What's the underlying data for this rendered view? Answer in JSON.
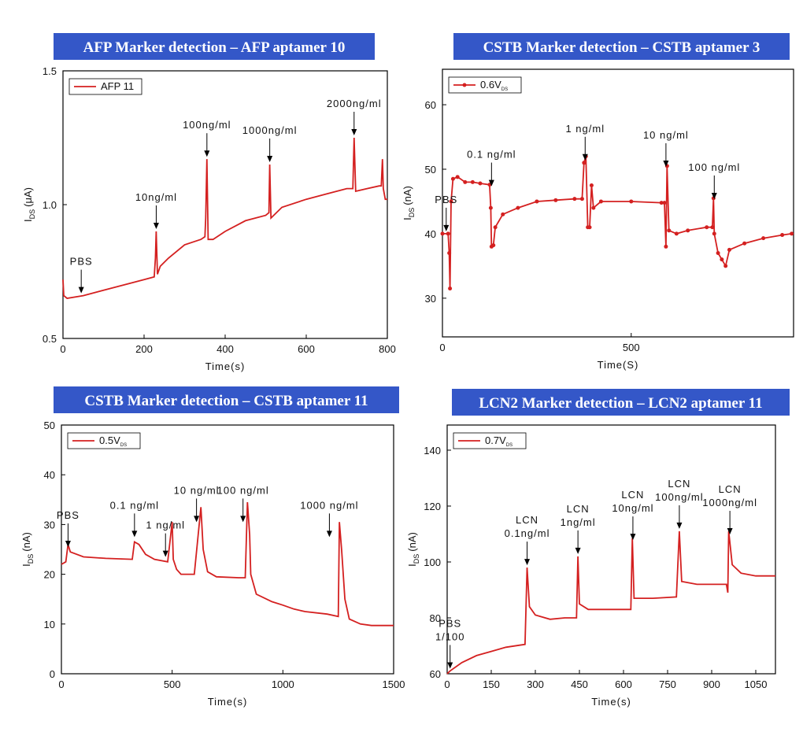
{
  "chart_data": [
    {
      "type": "line",
      "title": "AFP Marker detection – AFP aptamer 10",
      "x_label": "Time(s)",
      "y_label": {
        "main": "I",
        "sub": "DS",
        "unit": "(μA)"
      },
      "xlim": [
        0,
        800
      ],
      "xticks": [
        0,
        200,
        400,
        600,
        800
      ],
      "ylim": [
        0.5,
        1.5
      ],
      "yticks": [
        0.5,
        {
          "value": 1,
          "label": "1.0"
        },
        1.5
      ],
      "markers": false,
      "series": [
        {
          "name": "AFP 11",
          "color": "#d42020",
          "x": [
            0,
            2,
            10,
            50,
            100,
            150,
            200,
            225,
            228,
            230,
            233,
            240,
            260,
            300,
            340,
            350,
            352,
            355,
            358,
            370,
            400,
            450,
            500,
            508,
            510,
            513,
            540,
            600,
            650,
            700,
            715,
            718,
            722,
            750,
            780,
            785,
            788,
            790,
            795,
            800
          ],
          "values": [
            0.72,
            0.66,
            0.65,
            0.66,
            0.68,
            0.7,
            0.72,
            0.73,
            0.8,
            0.9,
            0.74,
            0.77,
            0.8,
            0.85,
            0.87,
            0.88,
            0.95,
            1.17,
            0.87,
            0.87,
            0.9,
            0.94,
            0.96,
            0.97,
            1.15,
            0.95,
            0.99,
            1.02,
            1.04,
            1.06,
            1.06,
            1.25,
            1.05,
            1.06,
            1.07,
            1.07,
            1.17,
            1.06,
            1.02,
            1.02
          ]
        }
      ],
      "annotations": [
        {
          "text": [
            "PBS"
          ],
          "x": 45,
          "y": 0.66
        },
        {
          "text": [
            "10ng/ml"
          ],
          "x": 230,
          "y": 0.9
        },
        {
          "text": [
            "100ng/ml"
          ],
          "x": 355,
          "y": 1.17
        },
        {
          "text": [
            "1000ng/ml"
          ],
          "x": 510,
          "y": 1.15
        },
        {
          "text": [
            "2000ng/ml"
          ],
          "x": 718,
          "y": 1.25
        }
      ]
    },
    {
      "type": "line",
      "title": "CSTB Marker detection – CSTB aptamer 3",
      "x_label": "Time(S)",
      "y_label": {
        "main": "I",
        "sub": "DS",
        "unit": "(nA)"
      },
      "xlim": [
        0,
        930
      ],
      "xticks": [
        0,
        500
      ],
      "ylim": [
        24,
        65.5
      ],
      "yticks": [
        30,
        40,
        50,
        60
      ],
      "markers": true,
      "series": [
        {
          "name": "0.6V",
          "name_sub": "DS",
          "color": "#d42020",
          "x": [
            0,
            15,
            18,
            20,
            23,
            28,
            40,
            60,
            80,
            100,
            125,
            128,
            130,
            135,
            140,
            160,
            200,
            250,
            300,
            350,
            370,
            375,
            380,
            385,
            390,
            395,
            400,
            420,
            500,
            580,
            588,
            592,
            595,
            600,
            620,
            650,
            700,
            715,
            718,
            720,
            730,
            740,
            750,
            760,
            800,
            850,
            900,
            925
          ],
          "values": [
            40,
            40,
            37,
            31.5,
            45,
            48.5,
            48.8,
            48,
            48,
            47.8,
            47.6,
            44,
            38,
            38.2,
            41,
            43,
            44,
            45,
            45.2,
            45.4,
            45.4,
            51,
            52,
            41,
            41,
            47.5,
            44,
            45,
            45,
            44.8,
            44.8,
            38,
            50.5,
            40.5,
            40,
            40.5,
            41,
            41,
            45.5,
            40,
            37,
            36,
            35,
            37.5,
            38.5,
            39.3,
            39.8,
            40
          ]
        }
      ],
      "annotations": [
        {
          "text": [
            "PBS"
          ],
          "x": 10,
          "y": 40
        },
        {
          "text": [
            "0.1 ng/ml"
          ],
          "x": 130,
          "y": 47
        },
        {
          "text": [
            "1 ng/ml"
          ],
          "x": 378,
          "y": 51
        },
        {
          "text": [
            "10 ng/ml"
          ],
          "x": 592,
          "y": 50
        },
        {
          "text": [
            "100 ng/ml"
          ],
          "x": 720,
          "y": 45
        }
      ]
    },
    {
      "type": "line",
      "title": "CSTB Marker detection – CSTB aptamer 11",
      "x_label": "Time(s)",
      "y_label": {
        "main": "I",
        "sub": "DS",
        "unit": "(nA)"
      },
      "xlim": [
        0,
        1500
      ],
      "xticks": [
        0,
        500,
        1000,
        1500
      ],
      "ylim": [
        0,
        50
      ],
      "yticks": [
        0,
        10,
        20,
        30,
        40,
        50
      ],
      "markers": false,
      "series": [
        {
          "name": "0.5V",
          "name_sub": "DS",
          "color": "#d42020",
          "x": [
            0,
            20,
            30,
            40,
            100,
            200,
            320,
            330,
            350,
            380,
            420,
            480,
            500,
            505,
            520,
            540,
            600,
            630,
            640,
            660,
            700,
            800,
            830,
            840,
            850,
            855,
            880,
            950,
            1000,
            1050,
            1100,
            1200,
            1250,
            1255,
            1265,
            1280,
            1300,
            1350,
            1400,
            1500
          ],
          "values": [
            22,
            22.5,
            26,
            24.5,
            23.5,
            23.2,
            23,
            26.5,
            26,
            24,
            23,
            22.5,
            30.5,
            23,
            21,
            20,
            20,
            33.5,
            25,
            20.5,
            19.5,
            19.3,
            19.3,
            34.5,
            28,
            20,
            16,
            14.5,
            13.8,
            13,
            12.5,
            12,
            11.5,
            30.5,
            25,
            15,
            11,
            10,
            9.7,
            9.7
          ]
        }
      ],
      "annotations": [
        {
          "text": [
            "PBS"
          ],
          "x": 30,
          "y": 25
        },
        {
          "text": [
            "0.1 ng/ml"
          ],
          "x": 330,
          "y": 27
        },
        {
          "text": [
            "1 ng/ml"
          ],
          "x": 470,
          "y": 23
        },
        {
          "text": [
            "10 ng/ml"
          ],
          "x": 610,
          "y": 30
        },
        {
          "text": [
            "100 ng/ml"
          ],
          "x": 820,
          "y": 30
        },
        {
          "text": [
            "1000 ng/ml"
          ],
          "x": 1210,
          "y": 27
        }
      ]
    },
    {
      "type": "line",
      "title": "LCN2 Marker detection – LCN2 aptamer 11",
      "x_label": "Time(s)",
      "y_label": {
        "main": "I",
        "sub": "DS",
        "unit": "(nA)"
      },
      "xlim": [
        0,
        1117
      ],
      "xticks": [
        0,
        150,
        300,
        450,
        600,
        750,
        900,
        1050
      ],
      "ylim": [
        60,
        149
      ],
      "yticks": [
        60,
        80,
        100,
        120,
        140
      ],
      "markers": false,
      "series": [
        {
          "name": "0.7V",
          "name_sub": "DS",
          "color": "#d42020",
          "x": [
            0,
            10,
            50,
            100,
            150,
            200,
            265,
            272,
            280,
            300,
            350,
            400,
            440,
            445,
            450,
            480,
            550,
            625,
            630,
            636,
            700,
            780,
            790,
            798,
            850,
            950,
            955,
            958,
            970,
            1000,
            1050,
            1117
          ],
          "values": [
            60,
            61,
            64,
            66.5,
            68,
            69.5,
            70.5,
            98,
            84,
            81,
            79.5,
            80,
            80,
            102,
            85,
            83,
            83,
            83,
            108.5,
            87,
            87,
            87.5,
            111,
            93,
            92,
            92,
            89,
            111,
            99,
            96,
            95,
            95
          ]
        }
      ],
      "annotations": [
        {
          "text": [
            "PBS",
            "1/100"
          ],
          "x": 10,
          "y": 61
        },
        {
          "text": [
            "LCN",
            "0.1ng/ml"
          ],
          "x": 272,
          "y": 98
        },
        {
          "text": [
            "LCN",
            "1ng/ml"
          ],
          "x": 445,
          "y": 102
        },
        {
          "text": [
            "LCN",
            "10ng/ml"
          ],
          "x": 632,
          "y": 107
        },
        {
          "text": [
            "LCN",
            "100ng/ml"
          ],
          "x": 790,
          "y": 111
        },
        {
          "text": [
            "LCN",
            "1000ng/ml"
          ],
          "x": 962,
          "y": 109
        }
      ]
    }
  ]
}
